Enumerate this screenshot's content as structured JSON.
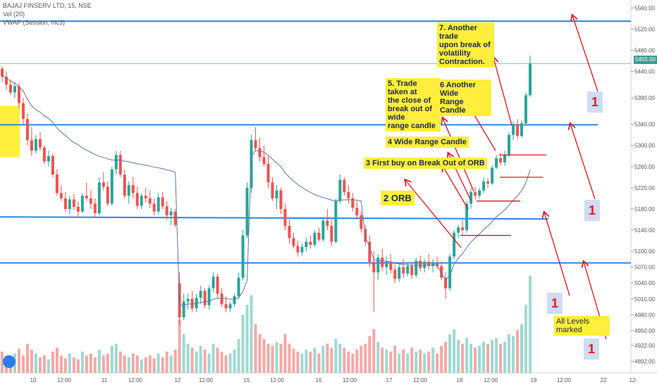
{
  "legend": {
    "title": "BAJAJ FINSERV LTD, 15, NSE",
    "vol": "Vol (20)",
    "vwap": "VWAP (Session, hlc3)"
  },
  "price_tag": "5455.00",
  "colors": {
    "up": "#26a69a",
    "down": "#ef5350",
    "line_blue": "#2e86de",
    "vwap": "#5b77a8",
    "arrow": "#d7191c",
    "annotation_bg": "#ffee3b",
    "number_bg": "#cfdcf3"
  },
  "annotations": [
    {
      "id": "orb",
      "text": "2 ORB"
    },
    {
      "id": "first-buy",
      "text": "3 First buy on Break Out of ORB"
    },
    {
      "id": "wide-range",
      "text": "4 Wide Range Candle"
    },
    {
      "id": "trade-close",
      "text": "5. Trade taken at\nthe close of\nbreak out of wide\nrange candle"
    },
    {
      "id": "another-wide",
      "text": "6 Another Wide\nRange Candle"
    },
    {
      "id": "another-trade",
      "text": "7. Another trade\nupon break of\nvolatility\nContraction."
    },
    {
      "id": "all-levels",
      "text": "All Levels\nmarked"
    }
  ],
  "level_badges": [
    "1",
    "1",
    "1",
    "1"
  ],
  "chart_data": {
    "type": "candlestick",
    "title": "BAJAJ FINSERV LTD, 15, NSE",
    "y_ticks": [
      5560,
      5520,
      5480,
      5440,
      5390,
      5340,
      5300,
      5260,
      5220,
      5180,
      5140,
      5100,
      5070,
      5040,
      5010,
      4980,
      4950,
      4922,
      4892
    ],
    "y_tick_labels": [
      "5560.00",
      "5520.00",
      "5480.00",
      "5440.00",
      "5390.00",
      "5340.00",
      "5300.00",
      "5260.00",
      "5220.00",
      "5180.00",
      "5140.00",
      "5100.00",
      "5070.00",
      "5040.00",
      "5010.00",
      "4980.00",
      "4950.00",
      "4922.00",
      "4892.00"
    ],
    "x_tick_labels": [
      "10",
      "12:00",
      "11",
      "12:00",
      "12",
      "12:00",
      "15",
      "12:00",
      "16",
      "12:00",
      "17",
      "12:00",
      "18",
      "12:00",
      "19",
      "12:00",
      "22",
      "12:"
    ],
    "ylim": [
      4870,
      5575
    ],
    "horizontal_levels": [
      5535,
      5339,
      5165,
      5078
    ],
    "last_price": 5455,
    "candles": [
      [
        5445,
        5450,
        5420,
        5430
      ],
      [
        5430,
        5440,
        5405,
        5415
      ],
      [
        5415,
        5425,
        5395,
        5400
      ],
      [
        5400,
        5420,
        5390,
        5412
      ],
      [
        5412,
        5418,
        5370,
        5380
      ],
      [
        5380,
        5390,
        5340,
        5350
      ],
      [
        5350,
        5360,
        5300,
        5310
      ],
      [
        5310,
        5335,
        5280,
        5290
      ],
      [
        5290,
        5320,
        5285,
        5312
      ],
      [
        5312,
        5325,
        5290,
        5296
      ],
      [
        5296,
        5300,
        5265,
        5270
      ],
      [
        5270,
        5290,
        5260,
        5280
      ],
      [
        5280,
        5285,
        5240,
        5245
      ],
      [
        5245,
        5255,
        5205,
        5210
      ],
      [
        5210,
        5225,
        5195,
        5200
      ],
      [
        5200,
        5212,
        5175,
        5180
      ],
      [
        5180,
        5205,
        5170,
        5198
      ],
      [
        5198,
        5208,
        5178,
        5184
      ],
      [
        5184,
        5195,
        5165,
        5175
      ],
      [
        5175,
        5210,
        5172,
        5205
      ],
      [
        5205,
        5230,
        5195,
        5200
      ],
      [
        5200,
        5215,
        5180,
        5190
      ],
      [
        5190,
        5200,
        5165,
        5172
      ],
      [
        5172,
        5240,
        5168,
        5230
      ],
      [
        5230,
        5250,
        5215,
        5222
      ],
      [
        5222,
        5232,
        5185,
        5190
      ],
      [
        5190,
        5260,
        5186,
        5255
      ],
      [
        5255,
        5290,
        5245,
        5282
      ],
      [
        5282,
        5290,
        5240,
        5245
      ],
      [
        5245,
        5255,
        5200,
        5205
      ],
      [
        5205,
        5232,
        5190,
        5225
      ],
      [
        5225,
        5240,
        5200,
        5210
      ],
      [
        5210,
        5222,
        5180,
        5186
      ],
      [
        5186,
        5210,
        5180,
        5205
      ],
      [
        5205,
        5220,
        5192,
        5200
      ],
      [
        5200,
        5215,
        5182,
        5190
      ],
      [
        5190,
        5200,
        5168,
        5175
      ],
      [
        5175,
        5210,
        5170,
        5202
      ],
      [
        5202,
        5212,
        5180,
        5185
      ],
      [
        5185,
        5195,
        5160,
        5168
      ],
      [
        5168,
        5182,
        5150,
        5175
      ],
      [
        5175,
        5180,
        5145,
        5150
      ],
      [
        5040,
        5060,
        4960,
        4975
      ],
      [
        4975,
        5020,
        4970,
        5005
      ],
      [
        5005,
        5020,
        4990,
        5010
      ],
      [
        5010,
        5025,
        4985,
        4992
      ],
      [
        4992,
        5020,
        4985,
        5012
      ],
      [
        5012,
        5035,
        5000,
        5025
      ],
      [
        5025,
        5030,
        4992,
        4998
      ],
      [
        4998,
        5035,
        4990,
        5030
      ],
      [
        5030,
        5060,
        5022,
        5052
      ],
      [
        5052,
        5058,
        5010,
        5020
      ],
      [
        5020,
        5030,
        4995,
        5000
      ],
      [
        5000,
        5015,
        4985,
        4992
      ],
      [
        4992,
        5005,
        4985,
        5000
      ],
      [
        5000,
        5020,
        4995,
        5015
      ],
      [
        5015,
        5060,
        5010,
        5050
      ],
      [
        5050,
        5140,
        5045,
        5130
      ],
      [
        5130,
        5230,
        5125,
        5220
      ],
      [
        5220,
        5320,
        5210,
        5310
      ],
      [
        5310,
        5335,
        5290,
        5295
      ],
      [
        5295,
        5315,
        5270,
        5278
      ],
      [
        5278,
        5300,
        5260,
        5265
      ],
      [
        5265,
        5280,
        5220,
        5230
      ],
      [
        5230,
        5240,
        5195,
        5200
      ],
      [
        5200,
        5225,
        5180,
        5215
      ],
      [
        5215,
        5220,
        5170,
        5180
      ],
      [
        5180,
        5190,
        5140,
        5148
      ],
      [
        5148,
        5160,
        5115,
        5125
      ],
      [
        5125,
        5135,
        5105,
        5110
      ],
      [
        5110,
        5120,
        5090,
        5098
      ],
      [
        5098,
        5115,
        5092,
        5108
      ],
      [
        5108,
        5125,
        5100,
        5118
      ],
      [
        5118,
        5130,
        5105,
        5112
      ],
      [
        5112,
        5140,
        5108,
        5135
      ],
      [
        5135,
        5145,
        5118,
        5122
      ],
      [
        5122,
        5165,
        5118,
        5158
      ],
      [
        5158,
        5180,
        5140,
        5148
      ],
      [
        5148,
        5160,
        5110,
        5118
      ],
      [
        5118,
        5200,
        5115,
        5195
      ],
      [
        5195,
        5245,
        5190,
        5235
      ],
      [
        5235,
        5240,
        5205,
        5212
      ],
      [
        5212,
        5225,
        5190,
        5200
      ],
      [
        5200,
        5210,
        5175,
        5182
      ],
      [
        5182,
        5195,
        5160,
        5168
      ],
      [
        5168,
        5175,
        5135,
        5142
      ],
      [
        5142,
        5150,
        5110,
        5118
      ],
      [
        5118,
        5130,
        5070,
        5080
      ],
      [
        5080,
        5100,
        4985,
        5060
      ],
      [
        5060,
        5095,
        5045,
        5088
      ],
      [
        5088,
        5105,
        5062,
        5070
      ],
      [
        5070,
        5090,
        5055,
        5080
      ],
      [
        5080,
        5095,
        5058,
        5065
      ],
      [
        5065,
        5075,
        5040,
        5048
      ],
      [
        5048,
        5075,
        5042,
        5070
      ],
      [
        5070,
        5085,
        5050,
        5058
      ],
      [
        5058,
        5078,
        5052,
        5072
      ],
      [
        5072,
        5080,
        5048,
        5055
      ],
      [
        5055,
        5088,
        5050,
        5082
      ],
      [
        5082,
        5092,
        5062,
        5068
      ],
      [
        5068,
        5085,
        5060,
        5080
      ],
      [
        5080,
        5095,
        5065,
        5072
      ],
      [
        5072,
        5085,
        5060,
        5078
      ],
      [
        5078,
        5090,
        5066,
        5072
      ],
      [
        5072,
        5080,
        5045,
        5050
      ],
      [
        5050,
        5060,
        5010,
        5030
      ],
      [
        5030,
        5095,
        5025,
        5090
      ],
      [
        5090,
        5140,
        5085,
        5135
      ],
      [
        5135,
        5150,
        5125,
        5145
      ],
      [
        5145,
        5160,
        5130,
        5140
      ],
      [
        5140,
        5195,
        5135,
        5190
      ],
      [
        5190,
        5220,
        5180,
        5212
      ],
      [
        5212,
        5222,
        5198,
        5205
      ],
      [
        5205,
        5220,
        5200,
        5215
      ],
      [
        5215,
        5240,
        5210,
        5232
      ],
      [
        5232,
        5238,
        5220,
        5228
      ],
      [
        5228,
        5262,
        5225,
        5258
      ],
      [
        5258,
        5282,
        5255,
        5276
      ],
      [
        5276,
        5286,
        5262,
        5268
      ],
      [
        5268,
        5290,
        5262,
        5282
      ],
      [
        5282,
        5325,
        5278,
        5320
      ],
      [
        5320,
        5345,
        5310,
        5340
      ],
      [
        5340,
        5350,
        5312,
        5318
      ],
      [
        5318,
        5348,
        5315,
        5342
      ],
      [
        5342,
        5400,
        5338,
        5395
      ],
      [
        5395,
        5470,
        5392,
        5455
      ]
    ],
    "volumes": [
      22,
      18,
      15,
      20,
      25,
      18,
      30,
      24,
      20,
      16,
      18,
      14,
      22,
      26,
      18,
      15,
      20,
      16,
      14,
      22,
      18,
      20,
      16,
      24,
      18,
      20,
      28,
      30,
      22,
      18,
      16,
      20,
      18,
      14,
      16,
      18,
      15,
      20,
      16,
      22,
      18,
      24,
      55,
      40,
      30,
      26,
      22,
      28,
      24,
      20,
      30,
      26,
      22,
      18,
      20,
      24,
      35,
      60,
      70,
      80,
      50,
      40,
      35,
      30,
      28,
      32,
      30,
      40,
      30,
      25,
      22,
      20,
      24,
      22,
      26,
      20,
      28,
      30,
      26,
      35,
      30,
      26,
      22,
      20,
      24,
      28,
      30,
      38,
      45,
      32,
      26,
      24,
      22,
      28,
      20,
      24,
      20,
      26,
      22,
      24,
      20,
      22,
      26,
      20,
      28,
      32,
      40,
      45,
      34,
      30,
      36,
      30,
      26,
      28,
      32,
      30,
      34,
      36,
      30,
      32,
      40,
      38,
      44,
      50,
      70,
      100
    ]
  }
}
